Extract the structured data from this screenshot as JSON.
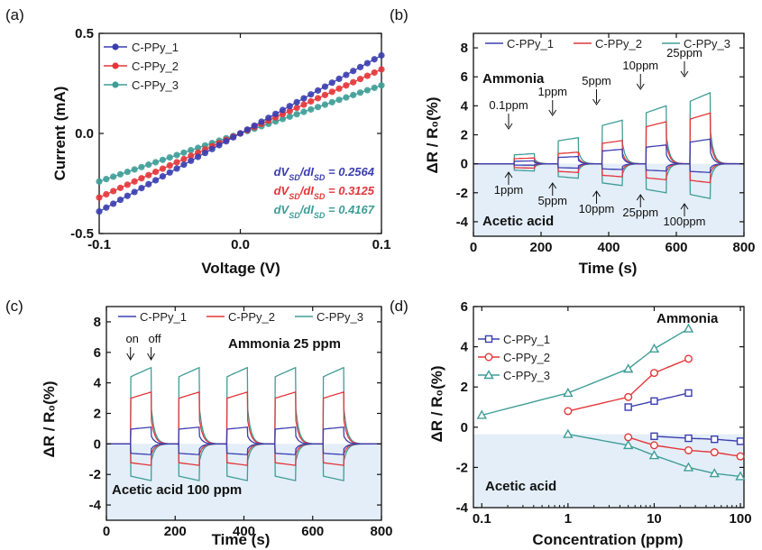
{
  "colors": {
    "series1": "#3b3eb0",
    "series2": "#e4363a",
    "series3": "#3f9d97",
    "acid_shade": "#e3eef8"
  },
  "chart_data": [
    {
      "panel": "(a)",
      "type": "scatter",
      "xlabel": "Voltage (V)",
      "ylabel": "Current (mA)",
      "xlim": [
        -0.1,
        0.1
      ],
      "ylim": [
        -0.5,
        0.5
      ],
      "xticks": [
        "-0.1",
        "0.0",
        "0.1"
      ],
      "yticks": [
        "-0.5",
        "0.0",
        "0.5"
      ],
      "legend_position": "top-left",
      "series": [
        {
          "name": "C-PPy_1",
          "slope": 3.9
        },
        {
          "name": "C-PPy_2",
          "slope": 3.2
        },
        {
          "name": "C-PPy_3",
          "slope": 2.4
        }
      ],
      "annotations": [
        "dV<sub>SD</sub>/dI<sub>SD</sub> = 0.2564",
        "dV<sub>SD</sub>/dI<sub>SD</sub> = 0.3125",
        "dV<sub>SD</sub>/dI<sub>SD</sub> = 0.4167"
      ],
      "annotation_parts": [
        {
          "pre": "dV",
          "sub1": "SD",
          "mid": "/dI",
          "sub2": "SD",
          "post": " = 0.2564"
        },
        {
          "pre": "dV",
          "sub1": "SD",
          "mid": "/dI",
          "sub2": "SD",
          "post": " = 0.3125"
        },
        {
          "pre": "dV",
          "sub1": "SD",
          "mid": "/dI",
          "sub2": "SD",
          "post": " = 0.4167"
        }
      ]
    },
    {
      "panel": "(b)",
      "type": "line",
      "xlabel": "Time (s)",
      "ylabel": "ΔR / R₀(%)",
      "xlim": [
        0,
        800
      ],
      "ylim": [
        -5,
        9
      ],
      "xticks": [
        "0",
        "200",
        "400",
        "600",
        "800"
      ],
      "yticks": [
        "-4",
        "-2",
        "0",
        "2",
        "4",
        "6",
        "8"
      ],
      "legend_position": "top",
      "region_labels": {
        "upper": "Ammonia",
        "lower": "Acetic acid"
      },
      "pulse_starts": [
        120,
        250,
        380,
        510,
        640
      ],
      "pulse_duration": 60,
      "series": [
        {
          "name": "C-PPy_1",
          "pos": [
            0.2,
            0.5,
            1.0,
            1.3,
            1.7
          ],
          "neg": [
            -0.1,
            -0.3,
            -0.4,
            -0.5,
            -0.6
          ]
        },
        {
          "name": "C-PPy_2",
          "pos": [
            0.4,
            0.8,
            1.6,
            2.9,
            3.5
          ],
          "neg": [
            -0.3,
            -0.6,
            -0.9,
            -1.1,
            -1.3
          ]
        },
        {
          "name": "C-PPy_3",
          "pos": [
            0.7,
            1.8,
            3.0,
            4.0,
            4.9
          ],
          "neg": [
            -0.5,
            -1.0,
            -1.5,
            -2.0,
            -2.4
          ]
        }
      ],
      "annotations_ammonia": [
        "0.1ppm",
        "1ppm",
        "5ppm",
        "10ppm",
        "25ppm"
      ],
      "annotations_acetic": [
        "1ppm",
        "5ppm",
        "10ppm",
        "25ppm",
        "100ppm"
      ]
    },
    {
      "panel": "(c)",
      "type": "line",
      "xlabel": "Time (s)",
      "ylabel": "ΔR / R₀(%)",
      "xlim": [
        0,
        800
      ],
      "ylim": [
        -5,
        9
      ],
      "xticks": [
        "0",
        "200",
        "400",
        "600",
        "800"
      ],
      "yticks": [
        "-4",
        "-2",
        "0",
        "2",
        "4",
        "6",
        "8"
      ],
      "legend_position": "top",
      "region_labels": {
        "upper": "Ammonia 25 ppm",
        "lower": "Acetic acid 100 ppm"
      },
      "on_off_labels": [
        "on",
        "off"
      ],
      "pulse_starts": [
        70,
        210,
        350,
        490,
        630
      ],
      "pulse_duration": 60,
      "series": [
        {
          "name": "C-PPy_1",
          "pos": 1.1,
          "neg": -0.7
        },
        {
          "name": "C-PPy_2",
          "pos": 3.4,
          "neg": -1.4
        },
        {
          "name": "C-PPy_3",
          "pos": 5.0,
          "neg": -2.4
        }
      ]
    },
    {
      "panel": "(d)",
      "type": "line",
      "xlabel": "Concentration (ppm)",
      "ylabel": "ΔR / R₀(%)",
      "xscale": "log",
      "xlim": [
        0.08,
        110
      ],
      "ylim": [
        -4,
        6
      ],
      "xticks": [
        "0.1",
        "1",
        "10",
        "100"
      ],
      "yticks": [
        "-4",
        "-2",
        "0",
        "2",
        "4",
        "6"
      ],
      "legend_position": "left",
      "region_labels": {
        "upper": "Ammonia",
        "lower": "Acetic acid"
      },
      "series": [
        {
          "name": "C-PPy_1",
          "marker": "square",
          "ammonia": {
            "x": [
              5,
              10,
              25
            ],
            "y": [
              1.0,
              1.3,
              1.7
            ]
          },
          "acetic": {
            "x": [
              10,
              25,
              50,
              100
            ],
            "y": [
              -0.45,
              -0.55,
              -0.6,
              -0.7
            ]
          }
        },
        {
          "name": "C-PPy_2",
          "marker": "circle",
          "ammonia": {
            "x": [
              1,
              5,
              10,
              25
            ],
            "y": [
              0.8,
              1.5,
              2.7,
              3.4
            ]
          },
          "acetic": {
            "x": [
              5,
              10,
              25,
              50,
              100
            ],
            "y": [
              -0.5,
              -0.9,
              -1.15,
              -1.25,
              -1.45
            ]
          }
        },
        {
          "name": "C-PPy_3",
          "marker": "triangle",
          "ammonia": {
            "x": [
              0.1,
              1,
              5,
              10,
              25
            ],
            "y": [
              0.6,
              1.7,
              2.9,
              3.9,
              4.9
            ]
          },
          "acetic": {
            "x": [
              1,
              5,
              10,
              25,
              50,
              100
            ],
            "y": [
              -0.35,
              -0.9,
              -1.4,
              -2.0,
              -2.3,
              -2.45
            ]
          }
        }
      ]
    }
  ]
}
